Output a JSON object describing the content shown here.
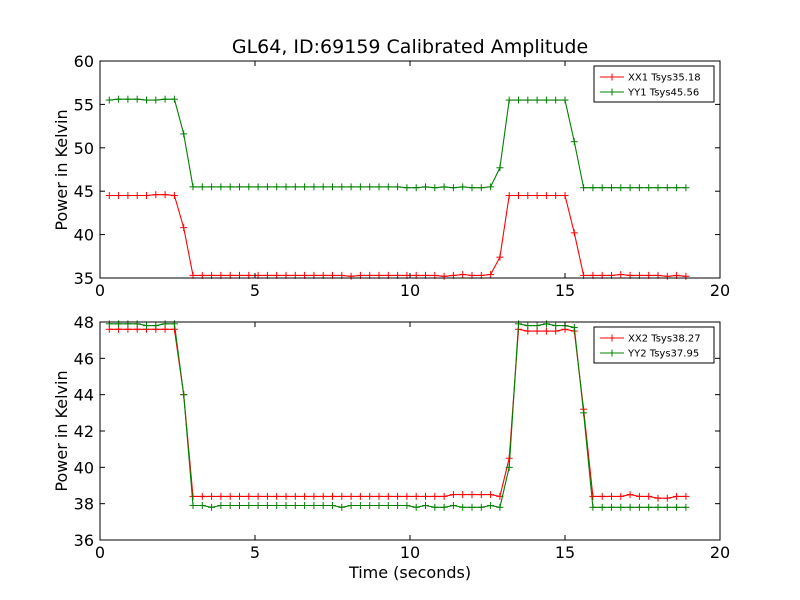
{
  "figure_title": "GL64, ID:69159 Calibrated Amplitude",
  "chart_data": [
    {
      "type": "line",
      "title": "GL64, ID:69159 Calibrated Amplitude",
      "xlabel": "",
      "ylabel": "Power in Kelvin",
      "xlim": [
        0,
        20
      ],
      "ylim": [
        35,
        60
      ],
      "xticks": [
        "0",
        "5",
        "10",
        "15",
        "20"
      ],
      "yticks": [
        "35",
        "40",
        "45",
        "50",
        "55",
        "60"
      ],
      "grid": false,
      "legend_position": "top-right",
      "x": [
        0.3,
        0.6,
        0.9,
        1.2,
        1.5,
        1.8,
        2.1,
        2.4,
        2.7,
        3.0,
        3.3,
        3.6,
        3.9,
        4.2,
        4.5,
        4.8,
        5.1,
        5.4,
        5.7,
        6.0,
        6.3,
        6.6,
        6.9,
        7.2,
        7.5,
        7.8,
        8.1,
        8.4,
        8.7,
        9.0,
        9.3,
        9.6,
        9.9,
        10.2,
        10.5,
        10.8,
        11.1,
        11.4,
        11.7,
        12.0,
        12.3,
        12.6,
        12.9,
        13.2,
        13.5,
        13.8,
        14.1,
        14.4,
        14.7,
        15.0,
        15.3,
        15.6,
        15.9,
        16.2,
        16.5,
        16.8,
        17.1,
        17.4,
        17.7,
        18.0,
        18.3,
        18.6,
        18.9
      ],
      "series": [
        {
          "name": "XX1 Tsys35.18",
          "color": "#ff0000",
          "values": [
            44.5,
            44.5,
            44.5,
            44.5,
            44.5,
            44.6,
            44.6,
            44.5,
            40.8,
            35.3,
            35.3,
            35.3,
            35.3,
            35.3,
            35.3,
            35.3,
            35.3,
            35.3,
            35.3,
            35.3,
            35.3,
            35.3,
            35.3,
            35.3,
            35.3,
            35.3,
            35.2,
            35.3,
            35.3,
            35.3,
            35.3,
            35.3,
            35.3,
            35.3,
            35.3,
            35.3,
            35.2,
            35.3,
            35.4,
            35.3,
            35.3,
            35.4,
            37.4,
            44.5,
            44.5,
            44.5,
            44.5,
            44.5,
            44.5,
            44.5,
            40.2,
            35.3,
            35.3,
            35.3,
            35.3,
            35.4,
            35.3,
            35.3,
            35.3,
            35.3,
            35.2,
            35.3,
            35.2
          ]
        },
        {
          "name": "YY1 Tsys45.56",
          "color": "#008000",
          "values": [
            55.5,
            55.6,
            55.6,
            55.6,
            55.5,
            55.5,
            55.6,
            55.6,
            51.6,
            45.5,
            45.5,
            45.5,
            45.5,
            45.5,
            45.5,
            45.5,
            45.5,
            45.5,
            45.5,
            45.5,
            45.5,
            45.5,
            45.5,
            45.5,
            45.5,
            45.5,
            45.5,
            45.5,
            45.5,
            45.5,
            45.5,
            45.5,
            45.4,
            45.4,
            45.5,
            45.4,
            45.5,
            45.4,
            45.5,
            45.4,
            45.4,
            45.5,
            47.7,
            55.5,
            55.5,
            55.5,
            55.5,
            55.5,
            55.5,
            55.5,
            50.7,
            45.4,
            45.4,
            45.4,
            45.4,
            45.4,
            45.4,
            45.4,
            45.4,
            45.4,
            45.4,
            45.4,
            45.4
          ]
        }
      ]
    },
    {
      "type": "line",
      "title": "",
      "xlabel": "Time (seconds)",
      "ylabel": "Power in Kelvin",
      "xlim": [
        0,
        20
      ],
      "ylim": [
        36,
        48
      ],
      "xticks": [
        "0",
        "5",
        "10",
        "15",
        "20"
      ],
      "yticks": [
        "36",
        "38",
        "40",
        "42",
        "44",
        "46",
        "48"
      ],
      "grid": false,
      "legend_position": "top-right",
      "x": [
        0.3,
        0.6,
        0.9,
        1.2,
        1.5,
        1.8,
        2.1,
        2.4,
        2.7,
        3.0,
        3.3,
        3.6,
        3.9,
        4.2,
        4.5,
        4.8,
        5.1,
        5.4,
        5.7,
        6.0,
        6.3,
        6.6,
        6.9,
        7.2,
        7.5,
        7.8,
        8.1,
        8.4,
        8.7,
        9.0,
        9.3,
        9.6,
        9.9,
        10.2,
        10.5,
        10.8,
        11.1,
        11.4,
        11.7,
        12.0,
        12.3,
        12.6,
        12.9,
        13.2,
        13.5,
        13.8,
        14.1,
        14.4,
        14.7,
        15.0,
        15.3,
        15.6,
        15.9,
        16.2,
        16.5,
        16.8,
        17.1,
        17.4,
        17.7,
        18.0,
        18.3,
        18.6,
        18.9
      ],
      "series": [
        {
          "name": "XX2 Tsys38.27",
          "color": "#ff0000",
          "values": [
            47.6,
            47.6,
            47.6,
            47.6,
            47.6,
            47.6,
            47.6,
            47.6,
            44.0,
            38.4,
            38.4,
            38.4,
            38.4,
            38.4,
            38.4,
            38.4,
            38.4,
            38.4,
            38.4,
            38.4,
            38.4,
            38.4,
            38.4,
            38.4,
            38.4,
            38.4,
            38.4,
            38.4,
            38.4,
            38.4,
            38.4,
            38.4,
            38.4,
            38.4,
            38.4,
            38.4,
            38.4,
            38.5,
            38.5,
            38.5,
            38.5,
            38.5,
            38.4,
            40.5,
            47.6,
            47.5,
            47.5,
            47.5,
            47.5,
            47.6,
            47.5,
            43.2,
            38.4,
            38.4,
            38.4,
            38.4,
            38.5,
            38.4,
            38.4,
            38.3,
            38.3,
            38.4,
            38.4
          ]
        },
        {
          "name": "YY2 Tsys37.95",
          "color": "#008000",
          "values": [
            47.9,
            47.9,
            47.9,
            47.9,
            47.8,
            47.8,
            47.9,
            47.9,
            44.0,
            37.9,
            37.9,
            37.8,
            37.9,
            37.9,
            37.9,
            37.9,
            37.9,
            37.9,
            37.9,
            37.9,
            37.9,
            37.9,
            37.9,
            37.9,
            37.9,
            37.8,
            37.9,
            37.9,
            37.9,
            37.9,
            37.9,
            37.9,
            37.9,
            37.8,
            37.9,
            37.8,
            37.8,
            37.9,
            37.8,
            37.8,
            37.8,
            37.9,
            37.8,
            40.0,
            47.9,
            47.8,
            47.8,
            47.9,
            47.8,
            47.8,
            47.7,
            43.0,
            37.8,
            37.8,
            37.8,
            37.8,
            37.8,
            37.8,
            37.8,
            37.8,
            37.8,
            37.8,
            37.8
          ]
        }
      ]
    }
  ]
}
